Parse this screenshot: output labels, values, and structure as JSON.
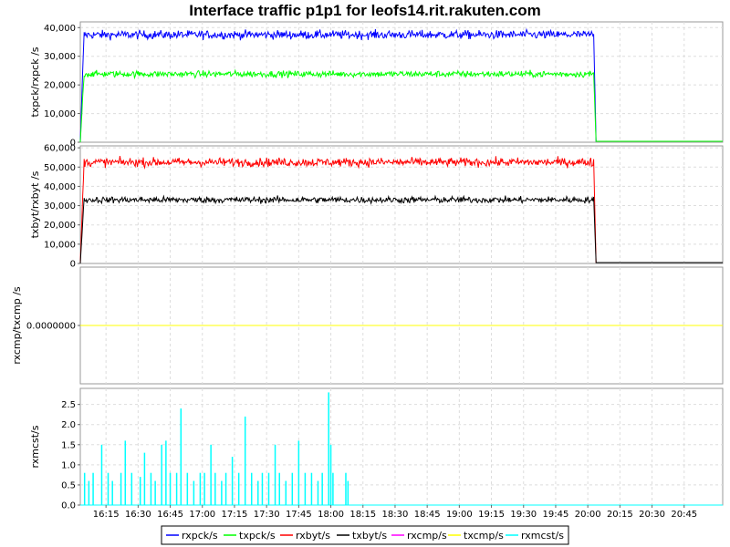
{
  "chart_data": {
    "type": "line",
    "title": "Interface traffic p1p1 for leofs14.rit.rakuten.com",
    "xlabel": "",
    "x_tick_labels": [
      "16:15",
      "16:30",
      "16:45",
      "17:00",
      "17:15",
      "17:30",
      "17:45",
      "18:00",
      "18:15",
      "18:30",
      "18:45",
      "19:00",
      "19:15",
      "19:30",
      "19:45",
      "20:00",
      "20:15",
      "20:30",
      "20:45"
    ],
    "x_range": [
      "16:03",
      "21:03"
    ],
    "panels": [
      {
        "name": "packets",
        "ylabel": "txpck/rxpck /s",
        "ylim": [
          0,
          42000
        ],
        "yticks": [
          0,
          10000,
          20000,
          30000,
          40000
        ],
        "ytick_labels": [
          "0",
          "10,000",
          "20,000",
          "30,000",
          "40,000"
        ],
        "series": [
          {
            "name": "rxpck/s",
            "color": "#0000ff",
            "mean": 37500,
            "noise": 1600,
            "start": "16:03",
            "end": "20:03"
          },
          {
            "name": "txpck/s",
            "color": "#00ff00",
            "mean": 23800,
            "noise": 1200,
            "start": "16:03",
            "end": "20:03"
          }
        ]
      },
      {
        "name": "bytes",
        "ylabel": "txbyt/rxbyt /s",
        "ylim": [
          0,
          61000
        ],
        "yticks": [
          0,
          10000,
          20000,
          30000,
          40000,
          50000,
          60000
        ],
        "ytick_labels": [
          "0",
          "10,000",
          "20,000",
          "30,000",
          "40,000",
          "50,000",
          "60,000"
        ],
        "series": [
          {
            "name": "rxbyt/s",
            "color": "#ff0000",
            "mean": 52500,
            "noise": 2400,
            "start": "16:03",
            "end": "20:03"
          },
          {
            "name": "txbyt/s",
            "color": "#000000",
            "mean": 33000,
            "noise": 1800,
            "start": "16:03",
            "end": "20:03"
          }
        ]
      },
      {
        "name": "compressed",
        "ylabel": "rxcmp/txcmp /s",
        "ylim": [
          -1,
          1
        ],
        "yticks": [
          0
        ],
        "ytick_labels": [
          "0.0000000"
        ],
        "series": [
          {
            "name": "rxcmp/s",
            "color": "#ff00ff",
            "constant": 0
          },
          {
            "name": "txcmp/s",
            "color": "#ffff00",
            "constant": 0
          }
        ]
      },
      {
        "name": "multicast",
        "ylabel": "rxmcst/s",
        "ylim": [
          0,
          2.9
        ],
        "yticks": [
          0,
          0.5,
          1.0,
          1.5,
          2.0,
          2.5
        ],
        "ytick_labels": [
          "0.0",
          "0.5",
          "1.0",
          "1.5",
          "2.0",
          "2.5"
        ],
        "series": [
          {
            "name": "rxmcst/s",
            "color": "#00ffff",
            "spikes": [
              {
                "t": "16:05",
                "v": 0.8
              },
              {
                "t": "16:07",
                "v": 0.6
              },
              {
                "t": "16:09",
                "v": 0.8
              },
              {
                "t": "16:13",
                "v": 1.5
              },
              {
                "t": "16:16",
                "v": 0.8
              },
              {
                "t": "16:18",
                "v": 0.6
              },
              {
                "t": "16:22",
                "v": 0.8
              },
              {
                "t": "16:24",
                "v": 1.6
              },
              {
                "t": "16:27",
                "v": 0.8
              },
              {
                "t": "16:31",
                "v": 0.7
              },
              {
                "t": "16:33",
                "v": 1.3
              },
              {
                "t": "16:36",
                "v": 0.8
              },
              {
                "t": "16:38",
                "v": 0.6
              },
              {
                "t": "16:41",
                "v": 1.5
              },
              {
                "t": "16:43",
                "v": 1.6
              },
              {
                "t": "16:45",
                "v": 0.8
              },
              {
                "t": "16:48",
                "v": 0.8
              },
              {
                "t": "16:50",
                "v": 2.4
              },
              {
                "t": "16:53",
                "v": 0.8
              },
              {
                "t": "16:56",
                "v": 0.6
              },
              {
                "t": "16:59",
                "v": 0.8
              },
              {
                "t": "17:01",
                "v": 0.8
              },
              {
                "t": "17:04",
                "v": 1.5
              },
              {
                "t": "17:06",
                "v": 0.8
              },
              {
                "t": "17:09",
                "v": 0.6
              },
              {
                "t": "17:11",
                "v": 0.8
              },
              {
                "t": "17:14",
                "v": 1.2
              },
              {
                "t": "17:17",
                "v": 0.8
              },
              {
                "t": "17:20",
                "v": 2.2
              },
              {
                "t": "17:23",
                "v": 0.8
              },
              {
                "t": "17:26",
                "v": 0.6
              },
              {
                "t": "17:28",
                "v": 0.8
              },
              {
                "t": "17:31",
                "v": 0.8
              },
              {
                "t": "17:34",
                "v": 1.5
              },
              {
                "t": "17:36",
                "v": 0.8
              },
              {
                "t": "17:39",
                "v": 0.6
              },
              {
                "t": "17:42",
                "v": 0.8
              },
              {
                "t": "17:45",
                "v": 1.6
              },
              {
                "t": "17:48",
                "v": 0.8
              },
              {
                "t": "17:51",
                "v": 0.8
              },
              {
                "t": "17:54",
                "v": 0.6
              },
              {
                "t": "17:56",
                "v": 0.8
              },
              {
                "t": "17:59",
                "v": 2.8
              },
              {
                "t": "18:00",
                "v": 1.5
              },
              {
                "t": "18:01",
                "v": 0.8
              },
              {
                "t": "18:07",
                "v": 0.8
              },
              {
                "t": "18:08",
                "v": 0.6
              }
            ]
          }
        ]
      }
    ],
    "legend": [
      {
        "name": "rxpck/s",
        "color": "#0000ff"
      },
      {
        "name": "txpck/s",
        "color": "#00ff00"
      },
      {
        "name": "rxbyt/s",
        "color": "#ff0000"
      },
      {
        "name": "txbyt/s",
        "color": "#000000"
      },
      {
        "name": "rxcmp/s",
        "color": "#ff00ff"
      },
      {
        "name": "txcmp/s",
        "color": "#ffff00"
      },
      {
        "name": "rxmcst/s",
        "color": "#00ffff"
      }
    ],
    "legend_position": "bottom-center"
  }
}
